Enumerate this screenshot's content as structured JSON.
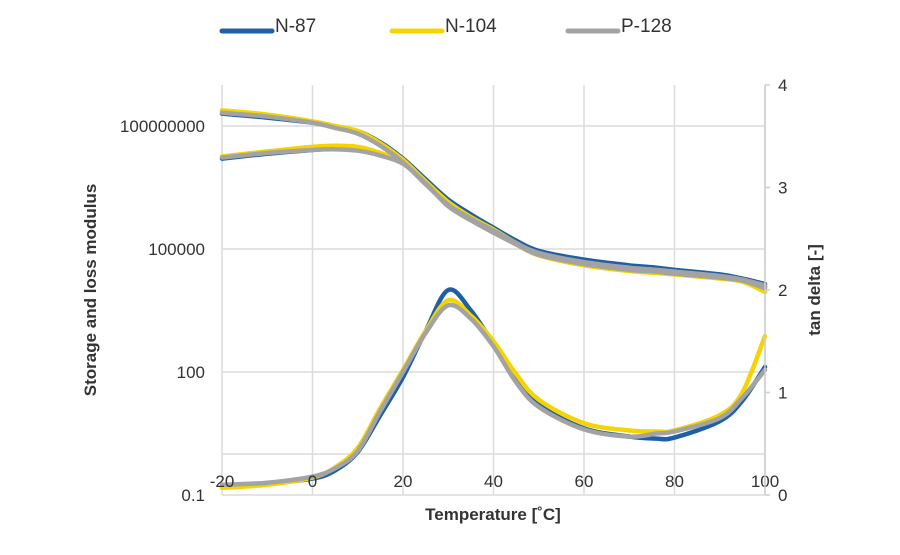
{
  "chart_data": {
    "type": "line",
    "xlabel": "Temperature [˚C]",
    "ylabel": "Storage and loss modulus",
    "ylabel_right": "tan delta [-]",
    "xlim": [
      -20,
      100
    ],
    "ylim": [
      0.1,
      1000000000
    ],
    "y_scale": "log",
    "ylim_right": [
      0,
      4
    ],
    "x_ticks": [
      "-20",
      "0",
      "20",
      "40",
      "60",
      "80",
      "100"
    ],
    "y_ticks": [
      "0.1",
      "100",
      "100000",
      "100000000"
    ],
    "y_ticks_right": [
      "0",
      "1",
      "2",
      "3",
      "4"
    ],
    "grid": true,
    "legend_position": "top",
    "x": [
      -20,
      -10,
      0,
      5,
      10,
      15,
      20,
      25,
      30,
      35,
      40,
      45,
      50,
      60,
      70,
      76,
      80,
      90,
      95,
      100
    ],
    "series": [
      {
        "name": "N-87",
        "color": "#1f5fa6",
        "storage_modulus": [
          200000000.0,
          160000000.0,
          120000000.0,
          95000000.0,
          75000000.0,
          40000000.0,
          16000000.0,
          5000000.0,
          1600000.0,
          700000.0,
          330000.0,
          160000.0,
          90000.0,
          55000.0,
          40000.0,
          35000.0,
          31000.0,
          24000.0,
          19000.0,
          14000.0
        ],
        "loss_modulus": [
          16000000.0,
          21000000.0,
          26000000.0,
          28000000.0,
          27000000.0,
          21000000.0,
          13000000.0,
          4500000.0,
          1300000.0,
          600000.0,
          270000.0,
          140000.0,
          75000.0,
          45000.0,
          32000.0,
          28000.0,
          25000.0,
          21000.0,
          18000.0,
          12000.0
        ],
        "tan_delta": [
          0.08,
          0.11,
          0.16,
          0.24,
          0.42,
          0.78,
          1.15,
          1.6,
          2.0,
          1.8,
          1.47,
          1.12,
          0.88,
          0.65,
          0.57,
          0.55,
          0.56,
          0.72,
          0.92,
          1.25
        ]
      },
      {
        "name": "N-104",
        "color": "#f5d400",
        "storage_modulus": [
          240000000.0,
          190000000.0,
          130000000.0,
          100000000.0,
          75000000.0,
          38000000.0,
          15000000.0,
          4500000.0,
          1400000.0,
          600000.0,
          300000.0,
          140000.0,
          75000.0,
          42000.0,
          30000.0,
          27000.0,
          25000.0,
          20000.0,
          17000.0,
          9000.0
        ],
        "loss_modulus": [
          18000000.0,
          24000000.0,
          31000000.0,
          33000000.0,
          31000000.0,
          22000000.0,
          13000000.0,
          4200000.0,
          1200000.0,
          550000.0,
          260000.0,
          130000.0,
          70000.0,
          40000.0,
          29000.0,
          26000.0,
          24000.0,
          19000.0,
          16000.0,
          9000.0
        ],
        "tan_delta": [
          0.07,
          0.1,
          0.17,
          0.27,
          0.46,
          0.85,
          1.22,
          1.6,
          1.9,
          1.75,
          1.5,
          1.18,
          0.93,
          0.7,
          0.63,
          0.62,
          0.63,
          0.78,
          1.0,
          1.55
        ]
      },
      {
        "name": "P-128",
        "color": "#a3a3a3",
        "storage_modulus": [
          210000000.0,
          170000000.0,
          120000000.0,
          90000000.0,
          65000000.0,
          33000000.0,
          13000000.0,
          3800000.0,
          1200000.0,
          550000.0,
          280000.0,
          140000.0,
          80000.0,
          48000.0,
          35000.0,
          31000.0,
          28000.0,
          22000.0,
          18000.0,
          13000.0
        ],
        "loss_modulus": [
          17000000.0,
          22000000.0,
          26000000.0,
          27000000.0,
          25000000.0,
          19000000.0,
          12000000.0,
          4000000.0,
          1100000.0,
          500000.0,
          250000.0,
          130000.0,
          72000.0,
          43000.0,
          31000.0,
          28000.0,
          25000.0,
          20000.0,
          17000.0,
          11000.0
        ],
        "tan_delta": [
          0.1,
          0.12,
          0.18,
          0.26,
          0.43,
          0.82,
          1.2,
          1.58,
          1.85,
          1.72,
          1.45,
          1.1,
          0.86,
          0.64,
          0.57,
          0.6,
          0.62,
          0.75,
          0.95,
          1.22
        ]
      }
    ]
  }
}
